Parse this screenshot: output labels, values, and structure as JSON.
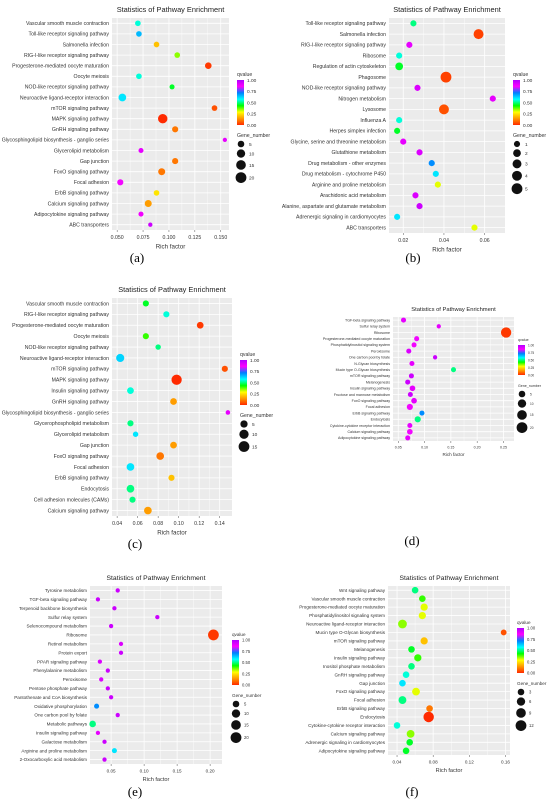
{
  "colorbar": {
    "stops": [
      "#ff2a00",
      "#ff9800",
      "#ffff00",
      "#00ff00",
      "#00ffff",
      "#0080ff",
      "#ff00ff",
      "#b000ff"
    ]
  },
  "chart_data": [
    {
      "type": "scatter",
      "panel_label": "(a)",
      "title": "Statistics of Pathway Enrichment",
      "xlabel": "Rich factor",
      "ylabel": "",
      "xlim": [
        0.045,
        0.158
      ],
      "xticks": [
        0.05,
        0.1,
        0.15
      ],
      "xtick_labels": [
        "0.050",
        "0.075",
        "0.100",
        "0.125",
        "0.150"
      ],
      "xtick_values": [
        0.05,
        0.075,
        0.1,
        0.125,
        0.15
      ],
      "qlim": [
        0,
        1
      ],
      "qvalue_ticks": [
        "1.00",
        "0.75",
        "0.50",
        "0.25",
        "0.00"
      ],
      "legend_size_title": "Gene_number",
      "legend_size_values": [
        5,
        10,
        15,
        20
      ],
      "pathways": [
        "Vascular smooth muscle contraction",
        "Toll-like receptor signaling pathway",
        "Salmonella infection",
        "RIG-I-like receptor signaling pathway",
        "Progesterone-mediated oocyte maturation",
        "Oocyte meiosis",
        "NOD-like receptor signaling pathway",
        "Neuroactive ligand-receptor interaction",
        "mTOR signaling pathway",
        "MAPK signaling pathway",
        "GnRH signaling pathway",
        "Glycosphingolipid biosynthesis - ganglio series",
        "Glycerolipid metabolism",
        "Gap junction",
        "FoxO signaling pathway",
        "Focal adhesion",
        "ErbB signaling pathway",
        "Calcium signaling pathway",
        "Adipocytokine signaling pathway",
        "ABC transporters"
      ],
      "rich_factor": [
        0.07,
        0.071,
        0.088,
        0.108,
        0.138,
        0.071,
        0.103,
        0.055,
        0.144,
        0.094,
        0.106,
        0.154,
        0.073,
        0.106,
        0.093,
        0.053,
        0.088,
        0.08,
        0.073,
        0.082
      ],
      "qvalue": [
        0.55,
        0.65,
        0.2,
        0.35,
        0.02,
        0.55,
        0.45,
        0.6,
        0.05,
        0.0,
        0.1,
        0.9,
        0.9,
        0.1,
        0.1,
        0.85,
        0.25,
        0.15,
        0.88,
        0.95
      ],
      "gene_number": [
        3,
        3,
        3,
        3,
        5,
        3,
        2,
        8,
        3,
        14,
        4,
        1,
        2,
        4,
        6,
        4,
        3,
        6,
        2,
        1
      ]
    },
    {
      "type": "scatter",
      "panel_label": "(b)",
      "title": "Statistics of Pathway Enrichment",
      "xlabel": "Rich factor",
      "ylabel": "",
      "xlim": [
        0.013,
        0.07
      ],
      "xtick_labels": [
        "0.02",
        "0.04",
        "0.06"
      ],
      "xtick_values": [
        0.02,
        0.04,
        0.06
      ],
      "qlim": [
        0,
        1
      ],
      "qvalue_ticks": [
        "1.00",
        "0.75",
        "0.50",
        "0.25",
        "0.00"
      ],
      "legend_size_title": "Gene_number",
      "legend_size_values": [
        1,
        2,
        3,
        4,
        5
      ],
      "pathways": [
        "Toll-like receptor signaling pathway",
        "Salmonella infection",
        "RIG-I-like receptor signaling pathway",
        "Ribosome",
        "Regulation of actin cytoskeleton",
        "Phagosome",
        "NOD-like receptor signaling pathway",
        "Nitrogen metabolism",
        "Lysosome",
        "Influenza A",
        "Herpes simplex infection",
        "Glycine, serine and threonine metabolism",
        "Glutathione metabolism",
        "Drug metabolism - other enzymes",
        "Drug metabolism - cytochrome P450",
        "Arginine and proline metabolism",
        "Arachidonic acid metabolism",
        "Alanine, aspartate and glutamate metabolism",
        "Adrenergic signaling in cardiomyocytes",
        "ABC transporters"
      ],
      "rich_factor": [
        0.025,
        0.057,
        0.023,
        0.018,
        0.018,
        0.041,
        0.027,
        0.064,
        0.04,
        0.018,
        0.017,
        0.02,
        0.028,
        0.034,
        0.036,
        0.037,
        0.026,
        0.028,
        0.017,
        0.055
      ],
      "qvalue": [
        0.5,
        0.03,
        0.9,
        0.55,
        0.45,
        0.03,
        0.92,
        0.9,
        0.05,
        0.55,
        0.45,
        0.9,
        0.92,
        0.7,
        0.6,
        0.3,
        0.92,
        0.95,
        0.6,
        0.3
      ],
      "gene_number": [
        1,
        4,
        1,
        1,
        2,
        5,
        1,
        1,
        4,
        1,
        1,
        1,
        1,
        1,
        1,
        1,
        1,
        1,
        1,
        1
      ]
    },
    {
      "type": "scatter",
      "panel_label": "(c)",
      "title": "Statistics of Pathway Enrichment",
      "xlabel": "Rich factor",
      "ylabel": "",
      "xlim": [
        0.035,
        0.152
      ],
      "xtick_labels": [
        "0.04",
        "0.06",
        "0.08",
        "0.10",
        "0.12",
        "0.14"
      ],
      "xtick_values": [
        0.04,
        0.06,
        0.08,
        0.1,
        0.12,
        0.14
      ],
      "qlim": [
        0,
        1
      ],
      "qvalue_ticks": [
        "1.00",
        "0.75",
        "0.50",
        "0.25",
        "0.00"
      ],
      "legend_size_title": "Gene_number",
      "legend_size_values": [
        5,
        10,
        15
      ],
      "pathways": [
        "Vascular smooth muscle contraction",
        "RIG-I-like receptor signaling pathway",
        "Progesterone-mediated oocyte maturation",
        "Oocyte meiosis",
        "NOD-like receptor signaling pathway",
        "Neuroactive ligand-receptor interaction",
        "mTOR signaling pathway",
        "MAPK signaling pathway",
        "Insulin signaling pathway",
        "GnRH signaling pathway",
        "Glycosphingolipid biosynthesis - ganglio series",
        "Glycerophospholipid metabolism",
        "Glycerolipid metabolism",
        "Gap junction",
        "FoxO signaling pathway",
        "Focal adhesion",
        "ErbB signaling pathway",
        "Endocytosis",
        "Cell adhesion molecules (CAMs)",
        "Calcium signaling pathway"
      ],
      "rich_factor": [
        0.068,
        0.088,
        0.121,
        0.068,
        0.08,
        0.043,
        0.145,
        0.098,
        0.053,
        0.095,
        0.148,
        0.053,
        0.058,
        0.095,
        0.082,
        0.053,
        0.093,
        0.053,
        0.055,
        0.07
      ],
      "qvalue": [
        0.45,
        0.55,
        0.02,
        0.4,
        0.5,
        0.62,
        0.05,
        0.0,
        0.55,
        0.15,
        0.9,
        0.5,
        0.6,
        0.15,
        0.1,
        0.6,
        0.2,
        0.5,
        0.5,
        0.15
      ],
      "gene_number": [
        3,
        3,
        4,
        3,
        2,
        7,
        3,
        13,
        4,
        4,
        1,
        3,
        2,
        4,
        6,
        6,
        3,
        6,
        3,
        6
      ]
    },
    {
      "type": "scatter",
      "panel_label": "(d)",
      "title": "Statistics of Pathway Enrichment",
      "xlabel": "Rich factor",
      "ylabel": "",
      "xlim": [
        0.04,
        0.27
      ],
      "xtick_labels": [
        "0.05",
        "0.10",
        "0.15",
        "0.20",
        "0.25"
      ],
      "xtick_values": [
        0.05,
        0.1,
        0.15,
        0.2,
        0.25
      ],
      "qlim": [
        0,
        1
      ],
      "qvalue_ticks": [
        "1.00",
        "0.75",
        "0.50",
        "0.25",
        "0.00"
      ],
      "legend_size_title": "Gene_number",
      "legend_size_values": [
        5,
        10,
        15,
        20
      ],
      "pathways": [
        "TGF-beta signaling pathway",
        "Sulfur relay system",
        "Ribosome",
        "Progesterone-mediated oocyte maturation",
        "Phosphatidylinositol signaling system",
        "Peroxisome",
        "One carbon pool by folate",
        "N-Glycan biosynthesis",
        "Mucin type O-Glycan biosynthesis",
        "mTOR signaling pathway",
        "Melanogenesis",
        "Insulin signaling pathway",
        "Fructose and mannose metabolism",
        "FoxO signaling pathway",
        "Focal adhesion",
        "ErbB signaling pathway",
        "Endocytosis",
        "Cytokine-cytokine receptor interaction",
        "Calcium signaling pathway",
        "Adipocytokine signaling pathway"
      ],
      "rich_factor": [
        0.06,
        0.127,
        0.255,
        0.085,
        0.08,
        0.07,
        0.12,
        0.076,
        0.155,
        0.075,
        0.068,
        0.077,
        0.073,
        0.08,
        0.072,
        0.095,
        0.087,
        0.072,
        0.072,
        0.068
      ],
      "qvalue": [
        0.9,
        0.9,
        0.02,
        0.85,
        0.85,
        0.92,
        0.95,
        0.9,
        0.5,
        0.95,
        0.95,
        0.9,
        0.95,
        0.9,
        0.85,
        0.7,
        0.5,
        0.9,
        0.85,
        0.9
      ],
      "gene_number": [
        2,
        1,
        18,
        2,
        2,
        2,
        1,
        2,
        2,
        2,
        2,
        3,
        2,
        3,
        4,
        2,
        4,
        2,
        3,
        2
      ]
    },
    {
      "type": "scatter",
      "panel_label": "(e)",
      "title": "Statistics of Pathway Enrichment",
      "xlabel": "Rich factor",
      "ylabel": "",
      "xlim": [
        0.018,
        0.218
      ],
      "xtick_labels": [
        "0.05",
        "0.10",
        "0.15",
        "0.20"
      ],
      "xtick_values": [
        0.05,
        0.1,
        0.15,
        0.2
      ],
      "qlim": [
        0,
        1
      ],
      "qvalue_ticks": [
        "1.00",
        "0.75",
        "0.50",
        "0.25",
        "0.00"
      ],
      "legend_size_title": "Gene_number",
      "legend_size_values": [
        5,
        10,
        15,
        20
      ],
      "pathways": [
        "Tyrosine metabolism",
        "TGF-beta signaling pathway",
        "Terpenoid backbone biosynthesis",
        "Sulfur relay system",
        "Selenocompound metabolism",
        "Ribosome",
        "Retinol metabolism",
        "Protein export",
        "PPAR signaling pathway",
        "Phenylalanine metabolism",
        "Peroxisome",
        "Pentose phosphate pathway",
        "Pantothenate and CoA biosynthesis",
        "Oxidative phosphorylation",
        "One carbon pool by folate",
        "Metabolic pathways",
        "Insulin signaling pathway",
        "Galactose metabolism",
        "Arginine and proline metabolism",
        "2-Oxocarboxylic acid metabolism"
      ],
      "rich_factor": [
        0.06,
        0.03,
        0.055,
        0.12,
        0.05,
        0.205,
        0.065,
        0.065,
        0.033,
        0.045,
        0.035,
        0.045,
        0.05,
        0.028,
        0.06,
        0.022,
        0.03,
        0.04,
        0.055,
        0.04
      ],
      "qvalue": [
        0.95,
        0.95,
        0.95,
        0.95,
        0.95,
        0.02,
        0.92,
        0.95,
        0.92,
        0.95,
        0.92,
        0.95,
        0.95,
        0.7,
        0.95,
        0.5,
        0.9,
        0.95,
        0.6,
        0.95
      ],
      "gene_number": [
        1,
        1,
        1,
        1,
        1,
        20,
        1,
        1,
        1,
        1,
        1,
        1,
        1,
        2,
        1,
        5,
        1,
        1,
        2,
        1
      ]
    },
    {
      "type": "scatter",
      "panel_label": "(f)",
      "title": "Statistics of Pathway Enrichment",
      "xlabel": "Rich factor",
      "ylabel": "",
      "xlim": [
        0.03,
        0.165
      ],
      "xtick_labels": [
        "0.04",
        "0.08",
        "0.12",
        "0.16"
      ],
      "xtick_values": [
        0.04,
        0.08,
        0.12,
        0.16
      ],
      "qlim": [
        0,
        1
      ],
      "qvalue_ticks": [
        "1.00",
        "0.75",
        "0.50",
        "0.25",
        "0.00"
      ],
      "legend_size_title": "Gene_number",
      "legend_size_values": [
        3,
        6,
        9,
        12
      ],
      "pathways": [
        "Wnt signaling pathway",
        "Vascular smooth muscle contraction",
        "Progesterone-mediated oocyte maturation",
        "Phosphatidylinositol signaling system",
        "Neuroactive ligand-receptor interaction",
        "Mucin type O-Glycan biosynthesis",
        "mTOR signaling pathway",
        "Melanogenesis",
        "Insulin signaling pathway",
        "Inositol phosphate metabolism",
        "GnRH signaling pathway",
        "Gap junction",
        "FoxO signaling pathway",
        "Focal adhesion",
        "ErbB signaling pathway",
        "Endocytosis",
        "Cytokine-cytokine receptor interaction",
        "Calcium signaling pathway",
        "Adrenergic signaling in cardiomyocytes",
        "Adipocytokine signaling pathway"
      ],
      "rich_factor": [
        0.06,
        0.068,
        0.07,
        0.068,
        0.046,
        0.158,
        0.07,
        0.056,
        0.063,
        0.056,
        0.05,
        0.046,
        0.061,
        0.046,
        0.076,
        0.075,
        0.04,
        0.055,
        0.054,
        0.05
      ],
      "qvalue": [
        0.5,
        0.4,
        0.3,
        0.3,
        0.35,
        0.05,
        0.2,
        0.45,
        0.4,
        0.5,
        0.55,
        0.6,
        0.3,
        0.5,
        0.1,
        0.0,
        0.55,
        0.35,
        0.45,
        0.45
      ],
      "gene_number": [
        3,
        3,
        4,
        4,
        7,
        2,
        4,
        3,
        4,
        3,
        3,
        3,
        5,
        5,
        3,
        11,
        3,
        5,
        3,
        3
      ]
    }
  ]
}
